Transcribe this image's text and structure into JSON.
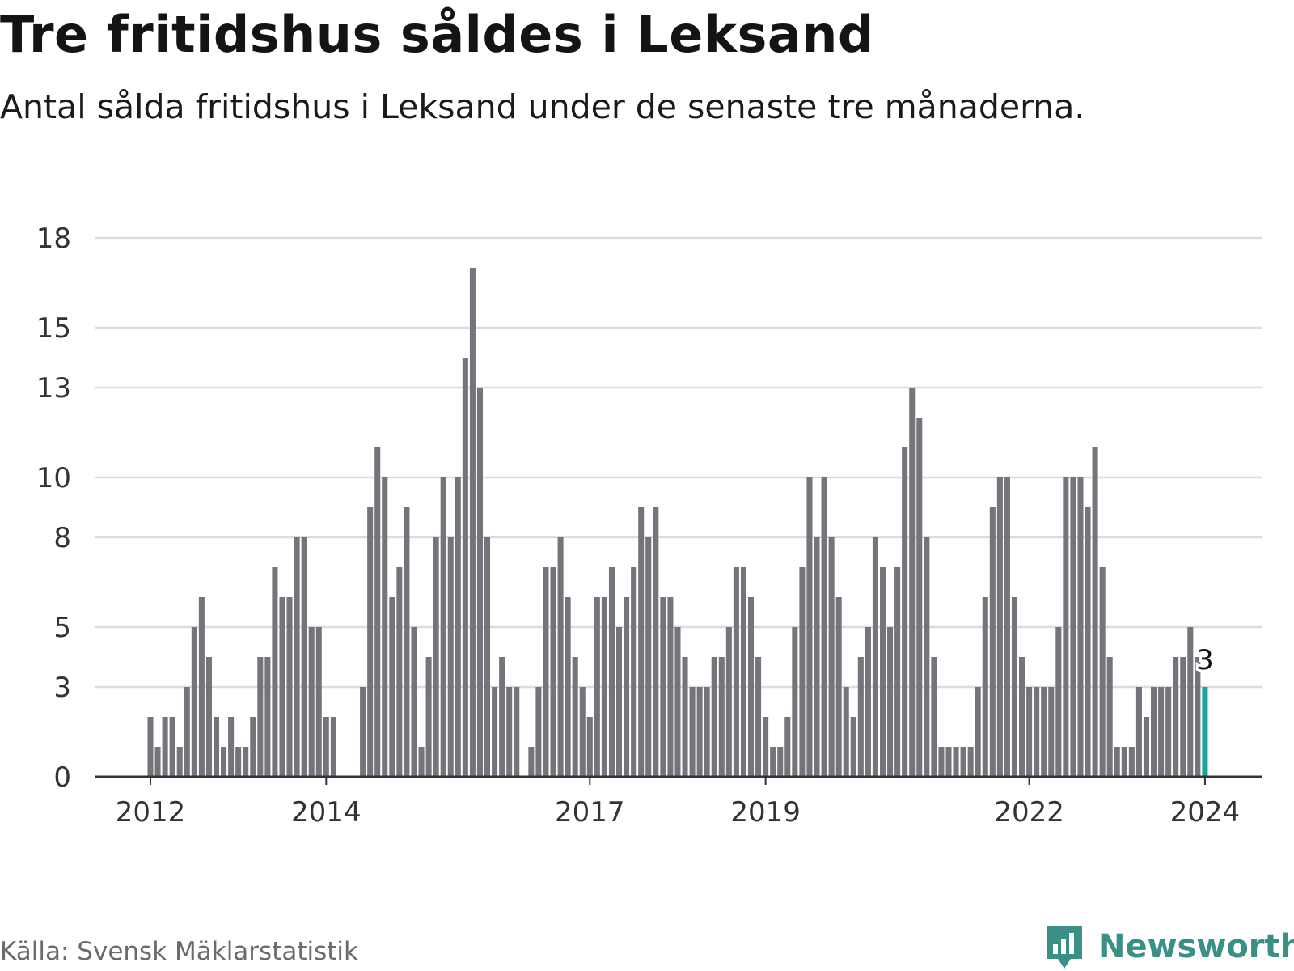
{
  "header": {
    "title": "Tre fritidshus såldes i Leksand",
    "subtitle": "Antal sålda fritidshus i Leksand under de senaste tre månaderna."
  },
  "footer": {
    "source": "Källa: Svensk Mäklarstatistik",
    "brand": "Newsworthy"
  },
  "colors": {
    "bar": "#75747b",
    "highlight": "#15a69a",
    "grid": "#dcdcdc",
    "axis": "#333333",
    "brand": "#3a8f87"
  },
  "icons": {
    "brand_logo": "newsworthy-logo-icon"
  },
  "chart_data": {
    "type": "bar",
    "title": "Tre fritidshus såldes i Leksand",
    "subtitle": "Antal sålda fritidshus i Leksand under de senaste tre månaderna.",
    "xlabel": "",
    "ylabel": "",
    "ylim": [
      0,
      18
    ],
    "grid": true,
    "y_ticks": [
      0,
      3,
      5,
      8,
      10,
      13,
      15,
      18
    ],
    "y_tick_labels": [
      "0",
      "3",
      "5",
      "8",
      "10",
      "13",
      "15",
      "18"
    ],
    "x_ticks": [
      {
        "label": "2012",
        "index": 0
      },
      {
        "label": "2014",
        "index": 24
      },
      {
        "label": "2017",
        "index": 60
      },
      {
        "label": "2019",
        "index": 84
      },
      {
        "label": "2022",
        "index": 120
      },
      {
        "label": "2024",
        "index": 144
      }
    ],
    "start": "2012-01",
    "period": "monthly",
    "values": [
      2,
      1,
      2,
      2,
      1,
      3,
      5,
      6,
      4,
      2,
      1,
      2,
      1,
      1,
      2,
      4,
      4,
      7,
      6,
      6,
      8,
      8,
      5,
      5,
      2,
      2,
      0,
      0,
      0,
      3,
      9,
      11,
      10,
      6,
      7,
      9,
      5,
      1,
      4,
      8,
      10,
      8,
      10,
      14,
      17,
      13,
      8,
      3,
      4,
      3,
      3,
      0,
      1,
      3,
      7,
      7,
      8,
      6,
      4,
      3,
      2,
      6,
      6,
      7,
      5,
      6,
      7,
      9,
      8,
      9,
      6,
      6,
      5,
      4,
      3,
      3,
      3,
      4,
      4,
      5,
      7,
      7,
      6,
      4,
      2,
      1,
      1,
      2,
      5,
      7,
      10,
      8,
      10,
      8,
      6,
      3,
      2,
      4,
      5,
      8,
      7,
      5,
      7,
      11,
      13,
      12,
      8,
      4,
      1,
      1,
      1,
      1,
      1,
      3,
      6,
      9,
      10,
      10,
      6,
      4,
      3,
      3,
      3,
      3,
      5,
      10,
      10,
      10,
      9,
      11,
      7,
      4,
      1,
      1,
      1,
      3,
      2,
      3,
      3,
      3,
      4,
      4,
      5,
      4,
      3
    ],
    "highlight_index": 144,
    "highlight_label": "3"
  }
}
